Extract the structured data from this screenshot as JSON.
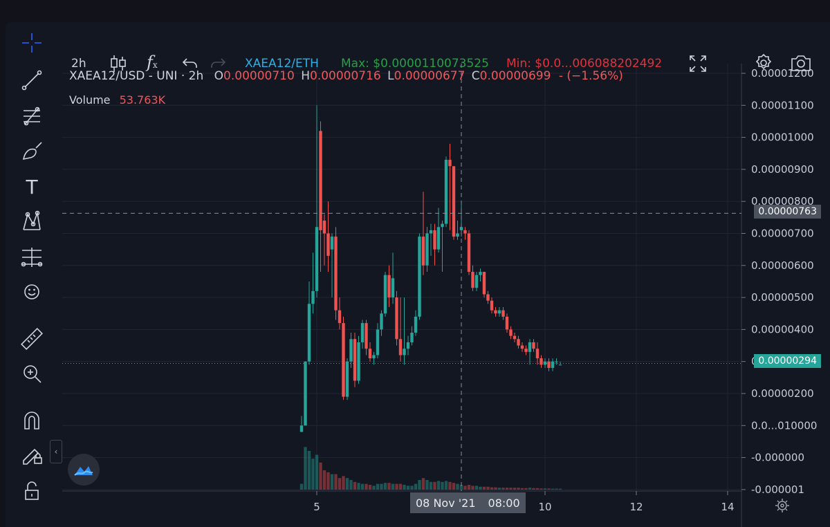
{
  "toolbar": {
    "interval": "2h",
    "pair": "XAEA12/ETH",
    "max_label": "Max: $0.0000110073525",
    "min_label": "Min: $0.0...006088202492",
    "colors": {
      "pair": "#2eb0e7",
      "max": "#26a046",
      "min": "#e0323c"
    }
  },
  "legend": {
    "symbol": "XAEA12/USD - UNI · 2h",
    "open_label": "O",
    "open": "0.00000710",
    "high_label": "H",
    "high": "0.00000716",
    "low_label": "L",
    "low": "0.00000677",
    "close_label": "C",
    "close": "0.00000699",
    "change": "- (−1.56%)",
    "volume_label": "Volume",
    "volume": "53.763K"
  },
  "crosshair": {
    "date_label": "08 Nov '21",
    "time_label": "08:00",
    "price_label": "0.00000763",
    "price": 7.63e-06
  },
  "last_price": {
    "label": "0.00000294",
    "value": 2.94e-06,
    "color": "#26a69a"
  },
  "icons": {
    "left_toolbar": [
      "crosshair-icon",
      "trend-line-icon",
      "fib-retracement-icon",
      "brush-icon",
      "text-icon",
      "pattern-icon",
      "measure-lines-icon",
      "emoji-icon",
      "ruler-icon",
      "zoom-in-icon",
      "magnet-icon",
      "lock-drawing-icon",
      "unlock-icon"
    ],
    "top_toolbar": [
      "candlestick-icon",
      "function-icon",
      "undo-icon",
      "redo-icon",
      "fullscreen-icon",
      "settings-icon",
      "camera-icon"
    ]
  },
  "chart_data": {
    "type": "candlestick",
    "title": "XAEA12/USD - UNI · 2h",
    "x_ticks": [
      {
        "label": "5",
        "t": 2
      },
      {
        "label": "10",
        "t": 62
      },
      {
        "label": "12",
        "t": 86
      },
      {
        "label": "14",
        "t": 110
      }
    ],
    "y_ticks": [
      "0.00001200",
      "0.00001100",
      "0.00001000",
      "0.00000900",
      "0.00000800",
      "0.00000700",
      "0.00000600",
      "0.00000500",
      "0.00000400",
      "0.00000300",
      "0.00000200",
      "0.0...010000",
      "-0.000000",
      "-0.000001"
    ],
    "y_tick_values": [
      1.2e-05,
      1.1e-05,
      1e-05,
      9e-06,
      8e-06,
      7e-06,
      6e-06,
      5e-06,
      4e-06,
      3e-06,
      2e-06,
      1e-06,
      0,
      -1e-06
    ],
    "ylim": [
      -1.1e-06,
      1.25e-05
    ],
    "grid": true,
    "colors": {
      "up": "#26a69a",
      "down": "#ef5350"
    },
    "candles": [
      {
        "t": -2,
        "o": 8e-07,
        "h": 1.3e-06,
        "l": 8e-07,
        "c": 1e-06,
        "v": 0.3
      },
      {
        "t": -1,
        "o": 1e-06,
        "h": 3e-06,
        "l": 1e-06,
        "c": 3e-06,
        "v": 2.2
      },
      {
        "t": 0,
        "o": 3e-06,
        "h": 5.5e-06,
        "l": 2.9e-06,
        "c": 4.8e-06,
        "v": 2.0
      },
      {
        "t": 1,
        "o": 4.8e-06,
        "h": 6.4e-06,
        "l": 4.5e-06,
        "c": 5.2e-06,
        "v": 1.6
      },
      {
        "t": 2,
        "o": 5.2e-06,
        "h": 1.1e-05,
        "l": 5e-06,
        "c": 7.2e-06,
        "v": 1.8
      },
      {
        "t": 3,
        "o": 1.02e-05,
        "h": 1.05e-05,
        "l": 5.8e-06,
        "c": 7.1e-06,
        "v": 1.4
      },
      {
        "t": 4,
        "o": 7.4e-06,
        "h": 7.6e-06,
        "l": 6e-06,
        "c": 7e-06,
        "v": 1.0
      },
      {
        "t": 5,
        "o": 7e-06,
        "h": 8e-06,
        "l": 5.8e-06,
        "c": 6.3e-06,
        "v": 0.9
      },
      {
        "t": 6,
        "o": 6.5e-06,
        "h": 7e-06,
        "l": 5e-06,
        "c": 6.9e-06,
        "v": 0.8
      },
      {
        "t": 7,
        "o": 6.9e-06,
        "h": 7.2e-06,
        "l": 4.3e-06,
        "c": 4.6e-06,
        "v": 0.8
      },
      {
        "t": 8,
        "o": 4.6e-06,
        "h": 5e-06,
        "l": 4e-06,
        "c": 4.2e-06,
        "v": 0.6
      },
      {
        "t": 9,
        "o": 4.2e-06,
        "h": 4.4e-06,
        "l": 1.8e-06,
        "c": 1.9e-06,
        "v": 0.7
      },
      {
        "t": 10,
        "o": 1.9e-06,
        "h": 3.1e-06,
        "l": 1.8e-06,
        "c": 3e-06,
        "v": 0.6
      },
      {
        "t": 11,
        "o": 3e-06,
        "h": 3.9e-06,
        "l": 2.8e-06,
        "c": 3.7e-06,
        "v": 0.5
      },
      {
        "t": 12,
        "o": 3.7e-06,
        "h": 3.9e-06,
        "l": 2.2e-06,
        "c": 2.4e-06,
        "v": 0.4
      },
      {
        "t": 13,
        "o": 2.4e-06,
        "h": 3.8e-06,
        "l": 2.3e-06,
        "c": 3.6e-06,
        "v": 0.35
      },
      {
        "t": 14,
        "o": 3.6e-06,
        "h": 4.3e-06,
        "l": 3.4e-06,
        "c": 4.2e-06,
        "v": 0.3
      },
      {
        "t": 15,
        "o": 4.2e-06,
        "h": 4.3e-06,
        "l": 3.2e-06,
        "c": 3.4e-06,
        "v": 0.3
      },
      {
        "t": 16,
        "o": 3.4e-06,
        "h": 3.6e-06,
        "l": 3e-06,
        "c": 3.1e-06,
        "v": 0.25
      },
      {
        "t": 17,
        "o": 3.1e-06,
        "h": 3.3e-06,
        "l": 2.9e-06,
        "c": 3.2e-06,
        "v": 0.2
      },
      {
        "t": 18,
        "o": 3.2e-06,
        "h": 4.2e-06,
        "l": 3.1e-06,
        "c": 4e-06,
        "v": 0.3
      },
      {
        "t": 19,
        "o": 4e-06,
        "h": 4.6e-06,
        "l": 3.8e-06,
        "c": 4.5e-06,
        "v": 0.3
      },
      {
        "t": 20,
        "o": 4.5e-06,
        "h": 5.8e-06,
        "l": 4.4e-06,
        "c": 5.7e-06,
        "v": 0.35
      },
      {
        "t": 21,
        "o": 5.7e-06,
        "h": 6e-06,
        "l": 4.7e-06,
        "c": 5e-06,
        "v": 0.35
      },
      {
        "t": 22,
        "o": 5e-06,
        "h": 6.4e-06,
        "l": 4.8e-06,
        "c": 5.6e-06,
        "v": 0.3
      },
      {
        "t": 23,
        "o": 5e-06,
        "h": 5.2e-06,
        "l": 3.5e-06,
        "c": 3.7e-06,
        "v": 0.3
      },
      {
        "t": 24,
        "o": 3.7e-06,
        "h": 5e-06,
        "l": 3e-06,
        "c": 3.2e-06,
        "v": 0.3
      },
      {
        "t": 25,
        "o": 3.2e-06,
        "h": 5e-06,
        "l": 2.9e-06,
        "c": 3.4e-06,
        "v": 0.25
      },
      {
        "t": 26,
        "o": 3.4e-06,
        "h": 3.8e-06,
        "l": 3.2e-06,
        "c": 3.6e-06,
        "v": 0.2
      },
      {
        "t": 27,
        "o": 3.6e-06,
        "h": 4.1e-06,
        "l": 3.5e-06,
        "c": 3.9e-06,
        "v": 0.2
      },
      {
        "t": 28,
        "o": 3.9e-06,
        "h": 4.6e-06,
        "l": 3.8e-06,
        "c": 4.4e-06,
        "v": 0.3
      },
      {
        "t": 29,
        "o": 4.4e-06,
        "h": 7e-06,
        "l": 4.3e-06,
        "c": 6.9e-06,
        "v": 0.5
      },
      {
        "t": 30,
        "o": 6.9e-06,
        "h": 8.3e-06,
        "l": 5.7e-06,
        "c": 6e-06,
        "v": 0.6
      },
      {
        "t": 31,
        "o": 6e-06,
        "h": 7.2e-06,
        "l": 5.8e-06,
        "c": 7e-06,
        "v": 0.5
      },
      {
        "t": 32,
        "o": 7e-06,
        "h": 7.3e-06,
        "l": 6.3e-06,
        "c": 7.1e-06,
        "v": 0.4
      },
      {
        "t": 33,
        "o": 7.1e-06,
        "h": 7.3e-06,
        "l": 6e-06,
        "c": 6.5e-06,
        "v": 0.4
      },
      {
        "t": 34,
        "o": 6.5e-06,
        "h": 7.8e-06,
        "l": 6.4e-06,
        "c": 7.2e-06,
        "v": 0.45
      },
      {
        "t": 35,
        "o": 7.2e-06,
        "h": 7.4e-06,
        "l": 5.8e-06,
        "c": 7.3e-06,
        "v": 0.4
      },
      {
        "t": 36,
        "o": 7.3e-06,
        "h": 9.4e-06,
        "l": 7.2e-06,
        "c": 9.3e-06,
        "v": 0.45
      },
      {
        "t": 37,
        "o": 9.3e-06,
        "h": 9.8e-06,
        "l": 7.1e-06,
        "c": 9.1e-06,
        "v": 0.4
      },
      {
        "t": 38,
        "o": 9.1e-06,
        "h": 9.1e-06,
        "l": 6.8e-06,
        "c": 6.9e-06,
        "v": 0.35
      },
      {
        "t": 39,
        "o": 6.9e-06,
        "h": 7.4e-06,
        "l": 6.8e-06,
        "c": 7e-06,
        "v": 0.3
      },
      {
        "t": 40,
        "o": 7.1e-06,
        "h": 8e-06,
        "l": 6.9e-06,
        "c": 7.2e-06,
        "v": 0.25
      },
      {
        "t": 41,
        "o": 7.1e-06,
        "h": 7.2e-06,
        "l": 6.8e-06,
        "c": 7e-06,
        "v": 0.2
      },
      {
        "t": 42,
        "o": 7e-06,
        "h": 7.1e-06,
        "l": 5.7e-06,
        "c": 5.8e-06,
        "v": 0.25
      },
      {
        "t": 43,
        "o": 5.8e-06,
        "h": 6e-06,
        "l": 5.2e-06,
        "c": 5.3e-06,
        "v": 0.2
      },
      {
        "t": 44,
        "o": 5.3e-06,
        "h": 5.8e-06,
        "l": 5.2e-06,
        "c": 5.7e-06,
        "v": 0.2
      },
      {
        "t": 45,
        "o": 5.7e-06,
        "h": 5.9e-06,
        "l": 5.5e-06,
        "c": 5.8e-06,
        "v": 0.15
      },
      {
        "t": 46,
        "o": 5.8e-06,
        "h": 5.8e-06,
        "l": 5e-06,
        "c": 5.1e-06,
        "v": 0.15
      },
      {
        "t": 47,
        "o": 5.1e-06,
        "h": 5.2e-06,
        "l": 4.8e-06,
        "c": 4.9e-06,
        "v": 0.15
      },
      {
        "t": 48,
        "o": 4.9e-06,
        "h": 5e-06,
        "l": 4.5e-06,
        "c": 4.6e-06,
        "v": 0.12
      },
      {
        "t": 49,
        "o": 4.6e-06,
        "h": 4.7e-06,
        "l": 4.4e-06,
        "c": 4.5e-06,
        "v": 0.12
      },
      {
        "t": 50,
        "o": 4.5e-06,
        "h": 4.7e-06,
        "l": 4.4e-06,
        "c": 4.6e-06,
        "v": 0.1
      },
      {
        "t": 51,
        "o": 4.6e-06,
        "h": 4.7e-06,
        "l": 4.3e-06,
        "c": 4.4e-06,
        "v": 0.1
      },
      {
        "t": 52,
        "o": 4.4e-06,
        "h": 4.5e-06,
        "l": 3.9e-06,
        "c": 4e-06,
        "v": 0.1
      },
      {
        "t": 53,
        "o": 4e-06,
        "h": 4.1e-06,
        "l": 3.7e-06,
        "c": 3.8e-06,
        "v": 0.1
      },
      {
        "t": 54,
        "o": 3.8e-06,
        "h": 3.9e-06,
        "l": 3.6e-06,
        "c": 3.7e-06,
        "v": 0.1
      },
      {
        "t": 55,
        "o": 3.7e-06,
        "h": 3.8e-06,
        "l": 3.4e-06,
        "c": 3.5e-06,
        "v": 0.1
      },
      {
        "t": 56,
        "o": 3.5e-06,
        "h": 3.6e-06,
        "l": 3.3e-06,
        "c": 3.4e-06,
        "v": 0.08
      },
      {
        "t": 57,
        "o": 3.4e-06,
        "h": 3.5e-06,
        "l": 3.2e-06,
        "c": 3.3e-06,
        "v": 0.08
      },
      {
        "t": 58,
        "o": 3.3e-06,
        "h": 3.7e-06,
        "l": 2.9e-06,
        "c": 3.6e-06,
        "v": 0.1
      },
      {
        "t": 59,
        "o": 3.6e-06,
        "h": 3.7e-06,
        "l": 3.3e-06,
        "c": 3.4e-06,
        "v": 0.08
      },
      {
        "t": 60,
        "o": 3.4e-06,
        "h": 3.6e-06,
        "l": 2.9e-06,
        "c": 3.1e-06,
        "v": 0.08
      },
      {
        "t": 61,
        "o": 3.1e-06,
        "h": 3.2e-06,
        "l": 2.8e-06,
        "c": 2.9e-06,
        "v": 0.06
      },
      {
        "t": 62,
        "o": 2.9e-06,
        "h": 3.1e-06,
        "l": 2.8e-06,
        "c": 3e-06,
        "v": 0.06
      },
      {
        "t": 63,
        "o": 3e-06,
        "h": 3.1e-06,
        "l": 2.7e-06,
        "c": 2.8e-06,
        "v": 0.06
      },
      {
        "t": 64,
        "o": 2.8e-06,
        "h": 3.1e-06,
        "l": 2.7e-06,
        "c": 3e-06,
        "v": 0.05
      },
      {
        "t": 65,
        "o": 3e-06,
        "h": 3.1e-06,
        "l": 2.9e-06,
        "c": 3e-06,
        "v": 0.05
      },
      {
        "t": 66,
        "o": 2.9e-06,
        "h": 3e-06,
        "l": 2.9e-06,
        "c": 2.9e-06,
        "v": 0.05
      }
    ]
  }
}
